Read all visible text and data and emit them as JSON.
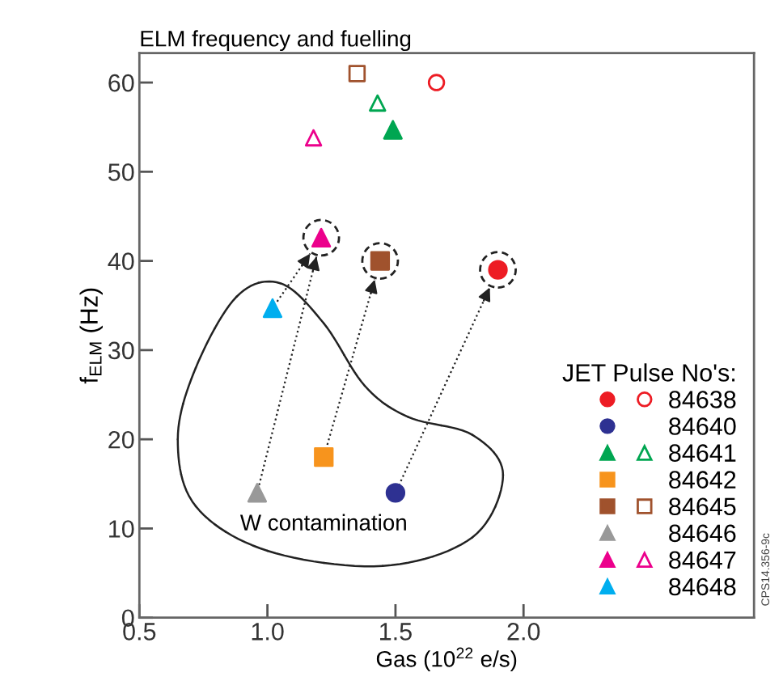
{
  "chart_data": {
    "type": "scatter",
    "title": "ELM frequency and fuelling",
    "xlabel": "Gas (10$^{22}$ e/s)",
    "ylabel": "f$_{ELM}$ (Hz)",
    "legend_title": "JET Pulse No's:",
    "xlim": [
      0.5,
      2.9
    ],
    "ylim": [
      0,
      63.3
    ],
    "xticks": [
      {
        "value": 0.5,
        "label": "0.5"
      },
      {
        "value": 1,
        "label": "1.0"
      },
      {
        "value": 1.5,
        "label": "1.5"
      },
      {
        "value": 2,
        "label": "2.0"
      }
    ],
    "yticks": [
      0,
      10,
      20,
      30,
      40,
      50,
      60
    ],
    "grid": false,
    "legend": "bottom right",
    "annotations": [
      "W contamination",
      "CPS14.356-9c"
    ],
    "series": [
      {
        "name": "84638",
        "color": "#ed1c24",
        "marker": "circle",
        "x": [
          1.9
        ],
        "values": [
          39.0
        ]
      },
      {
        "color": "#ed1c24",
        "marker": "circle",
        "x": [
          1.66
        ],
        "values": [
          60
        ]
      },
      {
        "name": "84640",
        "color": "#2e3192",
        "marker": "circle",
        "x": [
          1.5
        ],
        "values": [
          14
        ]
      },
      {
        "name": "84641",
        "color": "#00a651",
        "marker": "triangle",
        "x": [
          1.49
        ],
        "values": [
          54.7
        ]
      },
      {
        "color": "#00a651",
        "marker": "triangle",
        "x": [
          1.43
        ],
        "values": [
          57.7
        ]
      },
      {
        "name": "84642",
        "color": "#f7941d",
        "marker": "square",
        "x": [
          1.22
        ],
        "values": [
          18
        ]
      },
      {
        "name": "84645",
        "color": "#a0522d",
        "marker": "square",
        "x": [
          1.44
        ],
        "values": [
          40
        ]
      },
      {
        "color": "#a0522d",
        "marker": "square",
        "x": [
          1.35
        ],
        "values": [
          61
        ]
      },
      {
        "name": "84646",
        "color": "#999999",
        "marker": "triangle",
        "x": [
          0.96
        ],
        "values": [
          14
        ]
      },
      {
        "name": "84647",
        "color": "#ec008c",
        "marker": "triangle",
        "x": [
          1.21
        ],
        "values": [
          42.6
        ]
      },
      {
        "color": "#ec008c",
        "marker": "triangle",
        "x": [
          1.18
        ],
        "values": [
          53.8
        ]
      },
      {
        "name": "84648",
        "color": "#00aeef",
        "marker": "triangle",
        "x": [
          1.02
        ],
        "values": [
          34.7
        ]
      }
    ]
  }
}
